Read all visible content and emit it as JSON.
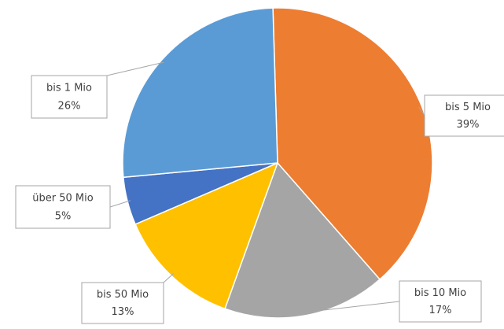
{
  "chart_data": {
    "type": "pie",
    "categories": [
      "bis 5 Mio",
      "bis 10 Mio",
      "bis 50 Mio",
      "über 50 Mio",
      "bis 1 Mio"
    ],
    "values": [
      39,
      17,
      13,
      5,
      26
    ],
    "value_labels": [
      "39%",
      "17%",
      "13%",
      "5%",
      "26%"
    ],
    "colors": [
      "#ED7D31",
      "#A5A5A5",
      "#FFC000",
      "#4472C4",
      "#5B9BD5"
    ]
  }
}
